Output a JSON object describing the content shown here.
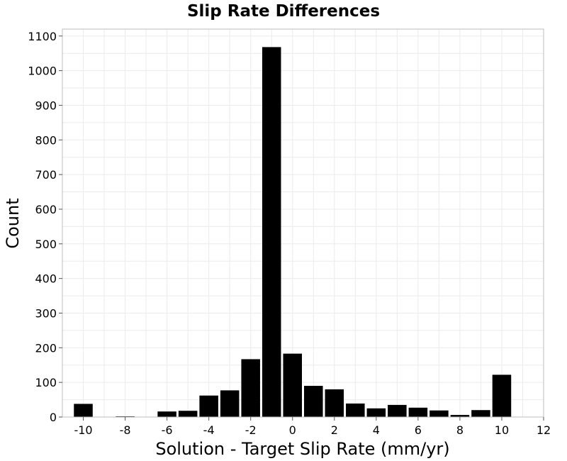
{
  "chart_data": {
    "type": "bar",
    "title": "Slip Rate Differences",
    "xlabel": "Solution - Target Slip Rate (mm/yr)",
    "ylabel": "Count",
    "xlim": [
      -11,
      12
    ],
    "ylim": [
      0,
      1120
    ],
    "xticks": [
      -10,
      -8,
      -6,
      -4,
      -2,
      0,
      2,
      4,
      6,
      8,
      10,
      12
    ],
    "yticks": [
      0,
      100,
      200,
      300,
      400,
      500,
      600,
      700,
      800,
      900,
      1000,
      1100
    ],
    "bin_width": 1,
    "grid": true,
    "bar_color": "#000000",
    "bins": [
      {
        "x": -10,
        "count": 38
      },
      {
        "x": -9,
        "count": 0
      },
      {
        "x": -8,
        "count": 2
      },
      {
        "x": -7,
        "count": 0
      },
      {
        "x": -6,
        "count": 16
      },
      {
        "x": -5,
        "count": 18
      },
      {
        "x": -4,
        "count": 62
      },
      {
        "x": -3,
        "count": 77
      },
      {
        "x": -2,
        "count": 167
      },
      {
        "x": -1,
        "count": 1068
      },
      {
        "x": 0,
        "count": 183
      },
      {
        "x": 1,
        "count": 90
      },
      {
        "x": 2,
        "count": 80
      },
      {
        "x": 3,
        "count": 39
      },
      {
        "x": 4,
        "count": 25
      },
      {
        "x": 5,
        "count": 35
      },
      {
        "x": 6,
        "count": 27
      },
      {
        "x": 7,
        "count": 19
      },
      {
        "x": 8,
        "count": 6
      },
      {
        "x": 9,
        "count": 20
      },
      {
        "x": 10,
        "count": 122
      }
    ]
  }
}
